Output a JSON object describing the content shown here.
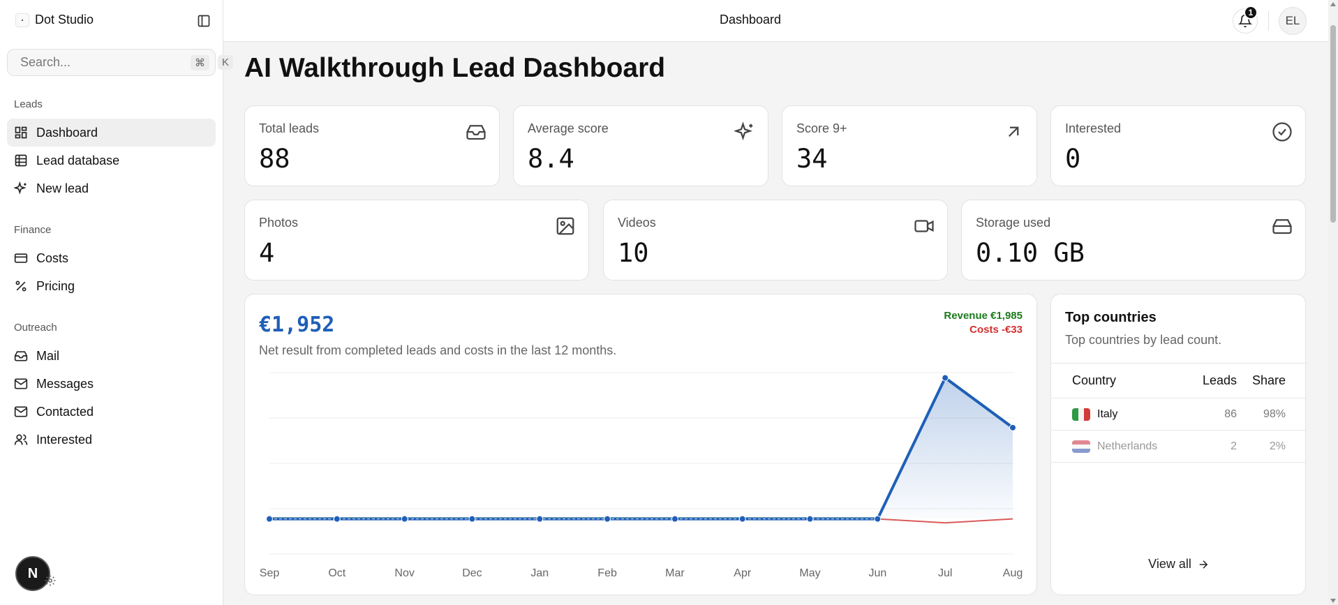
{
  "app": {
    "name": "Dot Studio"
  },
  "header": {
    "title": "Dashboard",
    "notifications_count": "1",
    "user_initials": "EL"
  },
  "search": {
    "placeholder": "Search...",
    "shortcut_mod": "⌘",
    "shortcut_key": "K"
  },
  "sidebar": {
    "sections": [
      {
        "label": "Leads",
        "items": [
          {
            "label": "Dashboard",
            "icon": "dashboard-icon",
            "active": true
          },
          {
            "label": "Lead database",
            "icon": "table-icon"
          },
          {
            "label": "New lead",
            "icon": "sparkles-icon"
          }
        ]
      },
      {
        "label": "Finance",
        "items": [
          {
            "label": "Costs",
            "icon": "credit-card-icon"
          },
          {
            "label": "Pricing",
            "icon": "percent-icon"
          }
        ]
      },
      {
        "label": "Outreach",
        "items": [
          {
            "label": "Mail",
            "icon": "inbox-icon"
          },
          {
            "label": "Messages",
            "icon": "mail-icon"
          },
          {
            "label": "Contacted",
            "icon": "mail-icon"
          },
          {
            "label": "Interested",
            "icon": "users-icon"
          }
        ]
      }
    ],
    "footer_avatar": "N"
  },
  "page": {
    "title": "AI Walkthrough Lead Dashboard"
  },
  "stats_row1": [
    {
      "label": "Total leads",
      "value": "88",
      "icon": "inbox-icon"
    },
    {
      "label": "Average score",
      "value": "8.4",
      "icon": "sparkles-icon"
    },
    {
      "label": "Score 9+",
      "value": "34",
      "icon": "arrow-up-right-icon"
    },
    {
      "label": "Interested",
      "value": "0",
      "icon": "check-circle-icon"
    }
  ],
  "stats_row2": [
    {
      "label": "Photos",
      "value": "4",
      "icon": "image-icon"
    },
    {
      "label": "Videos",
      "value": "10",
      "icon": "video-icon"
    },
    {
      "label": "Storage used",
      "value": "0.10 GB",
      "icon": "hard-drive-icon"
    }
  ],
  "net_result": {
    "value": "€1,952",
    "description": "Net result from completed leads and costs in the last 12 months.",
    "revenue_label": "Revenue €1,985",
    "costs_label": "Costs -€33",
    "colors": {
      "net": "#1f5fb8",
      "revenue": "#2e8b2e",
      "costs": "#d23030"
    }
  },
  "chart_data": {
    "type": "area",
    "categories": [
      "Sep",
      "Oct",
      "Nov",
      "Dec",
      "Jan",
      "Feb",
      "Mar",
      "Apr",
      "May",
      "Jun",
      "Jul",
      "Aug"
    ],
    "series": [
      {
        "values": [
          0,
          0,
          0,
          0,
          0,
          0,
          0,
          0,
          0,
          0,
          1205,
          780
        ]
      },
      {
        "values": [
          0,
          0,
          0,
          0,
          0,
          0,
          0,
          0,
          0,
          0,
          1205,
          780
        ]
      },
      {
        "values": [
          0,
          0,
          0,
          0,
          0,
          0,
          0,
          0,
          0,
          0,
          -33,
          0
        ]
      }
    ],
    "ylim": [
      -300,
      1250
    ],
    "grid": true
  },
  "top_countries": {
    "title": "Top countries",
    "subtitle": "Top countries by lead count.",
    "columns": [
      "Country",
      "Leads",
      "Share"
    ],
    "rows": [
      {
        "country": "Italy",
        "leads": "86",
        "share": "98%"
      },
      {
        "country": "Netherlands",
        "leads": "2",
        "share": "2%"
      }
    ],
    "view_all": "View all"
  }
}
